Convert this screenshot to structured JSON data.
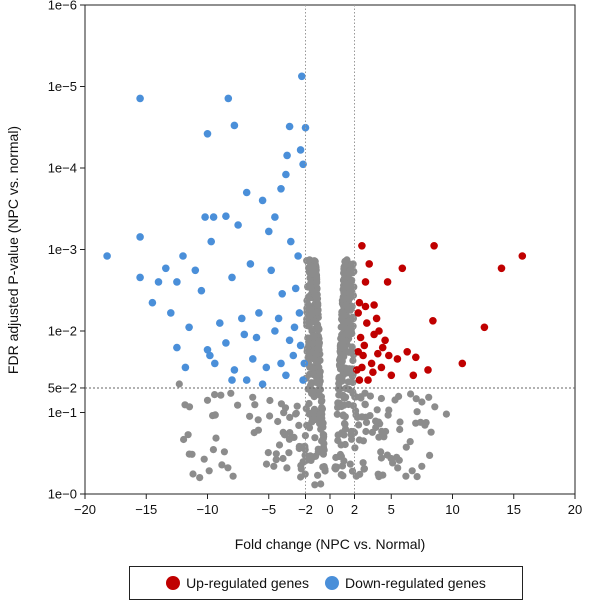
{
  "chart_data": {
    "type": "scatter",
    "xlabel": "Fold change (NPC vs. Normal)",
    "ylabel": "FDR adjusted P-value (NPC vs. normal)",
    "xlim": [
      -20,
      20
    ],
    "ylim_neglog10": [
      0,
      6
    ],
    "y_scale": "log (reversed)",
    "x_ticks": [
      {
        "v": -20,
        "label": "−20"
      },
      {
        "v": -15,
        "label": "−15"
      },
      {
        "v": -10,
        "label": "−10"
      },
      {
        "v": -5,
        "label": "−5"
      },
      {
        "v": -2,
        "label": "−2"
      },
      {
        "v": 0,
        "label": "0"
      },
      {
        "v": 2,
        "label": "2"
      },
      {
        "v": 5,
        "label": "5"
      },
      {
        "v": 10,
        "label": "10"
      },
      {
        "v": 15,
        "label": "15"
      },
      {
        "v": 20,
        "label": "20"
      }
    ],
    "y_ticks": [
      {
        "v": 0,
        "label": "1e−0"
      },
      {
        "v": 1,
        "label": "1e−1"
      },
      {
        "v": 1.301,
        "label": "5e−2"
      },
      {
        "v": 2,
        "label": "1e−2"
      },
      {
        "v": 3,
        "label": "1e−3"
      },
      {
        "v": 4,
        "label": "1e−4"
      },
      {
        "v": 5,
        "label": "1e−5"
      },
      {
        "v": 6,
        "label": "1e−6"
      }
    ],
    "thresholds": {
      "fold_change": [
        -2,
        2
      ],
      "p_value": 0.05
    },
    "grid": false,
    "legend_position": "bottom",
    "series": [
      {
        "name": "Up-regulated genes",
        "color": "#c00000",
        "points": [
          [
            15.7,
            0.0012
          ],
          [
            14.0,
            0.0017
          ],
          [
            8.5,
            0.0009
          ],
          [
            5.9,
            0.0017
          ],
          [
            4.7,
            0.0025
          ],
          [
            2.6,
            0.0009
          ],
          [
            3.2,
            0.0015
          ],
          [
            2.9,
            0.0025
          ],
          [
            2.4,
            0.0045
          ],
          [
            3.6,
            0.0048
          ],
          [
            8.4,
            0.0075
          ],
          [
            12.6,
            0.009
          ],
          [
            10.8,
            0.025
          ],
          [
            6.3,
            0.018
          ],
          [
            7.0,
            0.021
          ],
          [
            8.0,
            0.03
          ],
          [
            4.8,
            0.02
          ],
          [
            5.5,
            0.022
          ],
          [
            2.3,
            0.006
          ],
          [
            2.5,
            0.012
          ],
          [
            3.0,
            0.008
          ],
          [
            2.8,
            0.015
          ],
          [
            4.0,
            0.01
          ],
          [
            2.2,
            0.03
          ],
          [
            3.4,
            0.025
          ],
          [
            4.3,
            0.016
          ],
          [
            2.4,
            0.04
          ],
          [
            3.1,
            0.04
          ],
          [
            5.0,
            0.035
          ],
          [
            2.7,
            0.02
          ],
          [
            3.8,
            0.007
          ],
          [
            4.5,
            0.013
          ],
          [
            2.3,
            0.018
          ],
          [
            6.8,
            0.035
          ],
          [
            4.2,
            0.028
          ],
          [
            3.5,
            0.032
          ],
          [
            2.9,
            0.005
          ],
          [
            3.6,
            0.011
          ],
          [
            2.6,
            0.028
          ],
          [
            3.9,
            0.019
          ]
        ]
      },
      {
        "name": "Down-regulated genes",
        "color": "#4a8fd9",
        "points": [
          [
            -2.3,
            7.5e-06
          ],
          [
            -15.5,
            1.4e-05
          ],
          [
            -8.3,
            1.4e-05
          ],
          [
            -10.0,
            3.8e-05
          ],
          [
            -7.8,
            3e-05
          ],
          [
            -3.3,
            3.1e-05
          ],
          [
            -2.0,
            3.2e-05
          ],
          [
            -2.4,
            6e-05
          ],
          [
            -3.5,
            7e-05
          ],
          [
            -2.2,
            9e-05
          ],
          [
            -3.6,
            0.00012
          ],
          [
            -4.0,
            0.00018
          ],
          [
            -5.5,
            0.00025
          ],
          [
            -6.8,
            0.0002
          ],
          [
            -8.5,
            0.00039
          ],
          [
            -9.5,
            0.0004
          ],
          [
            -10.2,
            0.0004
          ],
          [
            -7.5,
            0.0005
          ],
          [
            -5.0,
            0.0006
          ],
          [
            -4.5,
            0.0004
          ],
          [
            -15.5,
            0.0007
          ],
          [
            -18.2,
            0.0012
          ],
          [
            -9.7,
            0.0008
          ],
          [
            -12.0,
            0.0012
          ],
          [
            -13.4,
            0.0017
          ],
          [
            -11.0,
            0.0018
          ],
          [
            -14.0,
            0.0025
          ],
          [
            -15.5,
            0.0022
          ],
          [
            -12.5,
            0.0025
          ],
          [
            -10.5,
            0.0032
          ],
          [
            -8.0,
            0.0022
          ],
          [
            -6.5,
            0.0015
          ],
          [
            -3.2,
            0.0008
          ],
          [
            -2.6,
            0.0012
          ],
          [
            -4.8,
            0.0018
          ],
          [
            -14.5,
            0.0045
          ],
          [
            -13.0,
            0.006
          ],
          [
            -11.5,
            0.009
          ],
          [
            -9.0,
            0.008
          ],
          [
            -7.2,
            0.007
          ],
          [
            -5.8,
            0.006
          ],
          [
            -2.8,
            0.003
          ],
          [
            -3.9,
            0.0035
          ],
          [
            -12.5,
            0.016
          ],
          [
            -10.0,
            0.017
          ],
          [
            -8.5,
            0.014
          ],
          [
            -6.0,
            0.012
          ],
          [
            -4.5,
            0.01
          ],
          [
            -11.8,
            0.028
          ],
          [
            -9.4,
            0.025
          ],
          [
            -7.8,
            0.03
          ],
          [
            -5.2,
            0.028
          ],
          [
            -3.0,
            0.02
          ],
          [
            -2.4,
            0.015
          ],
          [
            -3.6,
            0.035
          ],
          [
            -6.8,
            0.04
          ],
          [
            -8.0,
            0.04
          ],
          [
            -2.2,
            0.04
          ],
          [
            -4.0,
            0.025
          ],
          [
            -5.5,
            0.045
          ],
          [
            -2.9,
            0.009
          ],
          [
            -3.3,
            0.013
          ],
          [
            -2.5,
            0.006
          ],
          [
            -4.2,
            0.007
          ],
          [
            -6.3,
            0.022
          ],
          [
            -7.0,
            0.011
          ],
          [
            -9.8,
            0.02
          ],
          [
            -2.1,
            0.025
          ]
        ]
      }
    ]
  },
  "legend": {
    "items": [
      {
        "label": "Up-regulated genes",
        "color": "#c00000"
      },
      {
        "label": "Down-regulated genes",
        "color": "#4a8fd9"
      }
    ]
  },
  "not_significant_color": "#8c8c8c"
}
